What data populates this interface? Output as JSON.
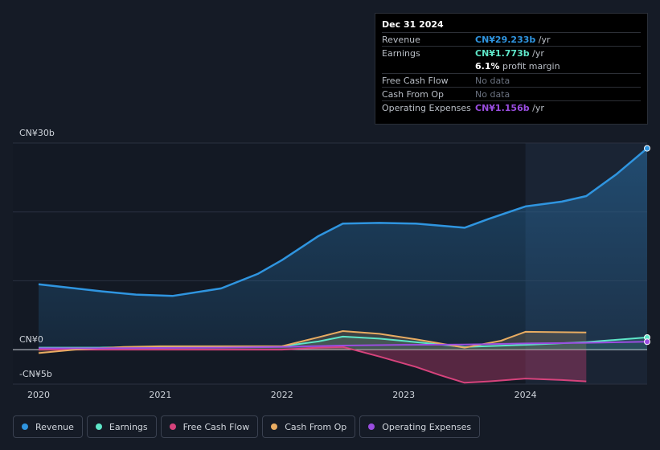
{
  "tooltip": {
    "date": "Dec 31 2024",
    "rows": {
      "revenue": {
        "label": "Revenue",
        "value": "CN¥29.233b",
        "unit": "/yr"
      },
      "earnings": {
        "label": "Earnings",
        "value": "CN¥1.773b",
        "unit": "/yr"
      },
      "margin": {
        "value": "6.1%",
        "unit": "profit margin"
      },
      "fcf": {
        "label": "Free Cash Flow",
        "value": "No data"
      },
      "cfo": {
        "label": "Cash From Op",
        "value": "No data"
      },
      "opex": {
        "label": "Operating Expenses",
        "value": "CN¥1.156b",
        "unit": "/yr"
      }
    }
  },
  "legend": [
    {
      "name": "Revenue",
      "color": "#2f95e0"
    },
    {
      "name": "Earnings",
      "color": "#5ee6c8"
    },
    {
      "name": "Free Cash Flow",
      "color": "#d6437c"
    },
    {
      "name": "Cash From Op",
      "color": "#e8ac62"
    },
    {
      "name": "Operating Expenses",
      "color": "#9a4de0"
    }
  ],
  "chart_data": {
    "type": "line",
    "title": "",
    "y_tick_labels": {
      "top": "CN¥30b",
      "zero": "CN¥0",
      "bottom": "-CN¥5b"
    },
    "ylim": [
      -5,
      30
    ],
    "x_tick_labels": [
      "2020",
      "2021",
      "2022",
      "2023",
      "2024"
    ],
    "x_ticks": [
      2020,
      2021,
      2022,
      2023,
      2024
    ],
    "xlim": [
      2020,
      2025
    ],
    "highlight_from": 2024,
    "series": [
      {
        "name": "Revenue",
        "color": "#2f95e0",
        "x": [
          2020,
          2020.5,
          2020.8,
          2021.1,
          2021.5,
          2021.8,
          2022.0,
          2022.3,
          2022.5,
          2022.8,
          2023.1,
          2023.5,
          2023.7,
          2024.0,
          2024.3,
          2024.5,
          2024.75,
          2025.0
        ],
        "values": [
          9.5,
          8.5,
          8.0,
          7.8,
          8.9,
          11.0,
          13.0,
          16.5,
          18.3,
          18.4,
          18.3,
          17.7,
          19.0,
          20.8,
          21.5,
          22.3,
          25.5,
          29.233
        ]
      },
      {
        "name": "Earnings",
        "color": "#5ee6c8",
        "x": [
          2020,
          2020.5,
          2021,
          2021.5,
          2022,
          2022.3,
          2022.5,
          2022.8,
          2023.1,
          2023.5,
          2024.0,
          2024.5,
          2025.0
        ],
        "values": [
          0.3,
          0.3,
          0.4,
          0.4,
          0.5,
          1.2,
          1.9,
          1.6,
          1.1,
          0.4,
          0.7,
          1.1,
          1.773
        ]
      },
      {
        "name": "Free Cash Flow",
        "color": "#d6437c",
        "x": [
          2020,
          2020.5,
          2021,
          2021.5,
          2022,
          2022.3,
          2022.5,
          2022.8,
          2023.1,
          2023.3,
          2023.5,
          2023.7,
          2024.0,
          2024.3,
          2024.5
        ],
        "values": [
          0,
          0,
          0,
          0,
          0,
          0.3,
          0.4,
          -1.0,
          -2.5,
          -3.7,
          -4.8,
          -4.6,
          -4.2,
          -4.4,
          -4.6
        ]
      },
      {
        "name": "Cash From Op",
        "color": "#e8ac62",
        "x": [
          2020,
          2020.3,
          2020.7,
          2021,
          2021.5,
          2022,
          2022.3,
          2022.5,
          2022.8,
          2023.1,
          2023.5,
          2023.8,
          2024.0,
          2024.5
        ],
        "values": [
          -0.5,
          0.0,
          0.4,
          0.5,
          0.5,
          0.5,
          1.8,
          2.7,
          2.3,
          1.5,
          0.3,
          1.3,
          2.6,
          2.5
        ]
      },
      {
        "name": "Operating Expenses",
        "color": "#9a4de0",
        "x": [
          2020,
          2020.5,
          2021,
          2021.5,
          2022,
          2022.5,
          2023,
          2023.5,
          2024.0,
          2024.5,
          2025.0
        ],
        "values": [
          0.2,
          0.2,
          0.25,
          0.3,
          0.4,
          0.6,
          0.7,
          0.75,
          0.9,
          1.0,
          1.156
        ]
      }
    ]
  }
}
